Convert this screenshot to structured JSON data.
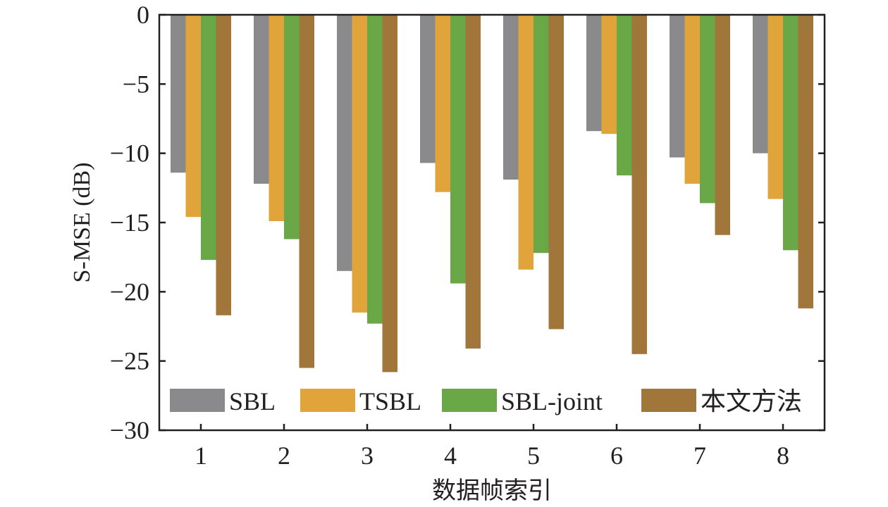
{
  "chart_data": {
    "type": "bar",
    "categories": [
      "1",
      "2",
      "3",
      "4",
      "5",
      "6",
      "7",
      "8"
    ],
    "series": [
      {
        "name": "SBL",
        "color": "#8a8a8c",
        "values": [
          -11.4,
          -12.2,
          -18.5,
          -10.7,
          -11.9,
          -8.4,
          -10.3,
          -10.0
        ]
      },
      {
        "name": "TSBL",
        "color": "#e0a43a",
        "values": [
          -14.6,
          -14.9,
          -21.5,
          -12.8,
          -18.4,
          -8.6,
          -12.2,
          -13.3
        ]
      },
      {
        "name": "SBL-joint",
        "color": "#6aa746",
        "values": [
          -17.7,
          -16.2,
          -22.3,
          -19.4,
          -17.2,
          -11.6,
          -13.6,
          -17.0
        ]
      },
      {
        "name": "本文方法",
        "color": "#a0763a",
        "values": [
          -21.7,
          -25.5,
          -25.8,
          -24.1,
          -22.7,
          -24.5,
          -15.9,
          -21.2
        ]
      }
    ],
    "xlabel": "数据帧索引",
    "ylabel": "S-MSE (dB)",
    "ylim": [
      -30,
      0
    ],
    "yticks": [
      0,
      -5,
      -10,
      -15,
      -20,
      -25,
      -30
    ],
    "ytick_labels": [
      "0",
      "−5",
      "−10",
      "−15",
      "−20",
      "−25",
      "−30"
    ],
    "grid": false,
    "legend_position": "bottom"
  }
}
